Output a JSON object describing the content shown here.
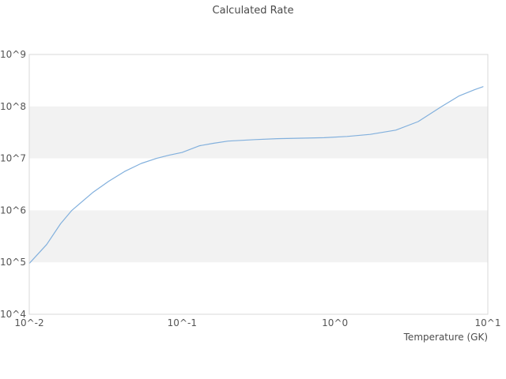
{
  "title": "Calculated Rate",
  "colors": {
    "background": "#ffffff",
    "band": "#f2f2f2",
    "plot_border": "#d8d8d8",
    "line": "#82b0dd",
    "tick_text": "#555555",
    "title_text": "#4a4a4a"
  },
  "chart_data": {
    "type": "line",
    "title": "Calculated Rate",
    "xlabel": "Temperature (GK)",
    "ylabel": "",
    "x_scale": "log",
    "y_scale": "log",
    "xlim": [
      0.01,
      10
    ],
    "ylim": [
      10000,
      1000000000
    ],
    "x_tick_values": [
      0.01,
      0.1,
      1,
      10
    ],
    "x_tick_labels": [
      "10^-2",
      "10^-1",
      "10^0",
      "10^1"
    ],
    "y_tick_values": [
      10000,
      100000,
      1000000,
      10000000,
      100000000,
      1000000000
    ],
    "y_tick_labels": [
      "10^4",
      "10^5",
      "10^6",
      "10^7",
      "10^8",
      "10^9"
    ],
    "grid": "alternating horizontal decade bands, no gridlines",
    "legend": "none",
    "shaded_bands": [
      [
        100000,
        1000000
      ],
      [
        10000000,
        100000000
      ]
    ],
    "series": [
      {
        "name": "calculated rate",
        "color": "#82b0dd",
        "x": [
          0.01,
          0.013,
          0.016,
          0.019,
          0.026,
          0.033,
          0.042,
          0.054,
          0.068,
          0.082,
          0.1,
          0.13,
          0.16,
          0.2,
          0.3,
          0.42,
          0.6,
          0.85,
          1.2,
          1.7,
          2.5,
          3.5,
          5.0,
          6.5,
          8.2,
          9.3
        ],
        "y": [
          95000.0,
          220000.0,
          550000.0,
          1000000.0,
          2200000.0,
          3600000.0,
          5600000.0,
          8000000.0,
          10000000.0,
          11500000.0,
          13000000.0,
          17500000.0,
          19500000.0,
          21500000.0,
          23000000.0,
          24000000.0,
          24500000.0,
          25000000.0,
          26500000.0,
          29000000.0,
          35000000.0,
          51000000.0,
          100000000.0,
          160000000.0,
          210000000.0,
          240000000.0
        ]
      }
    ]
  }
}
